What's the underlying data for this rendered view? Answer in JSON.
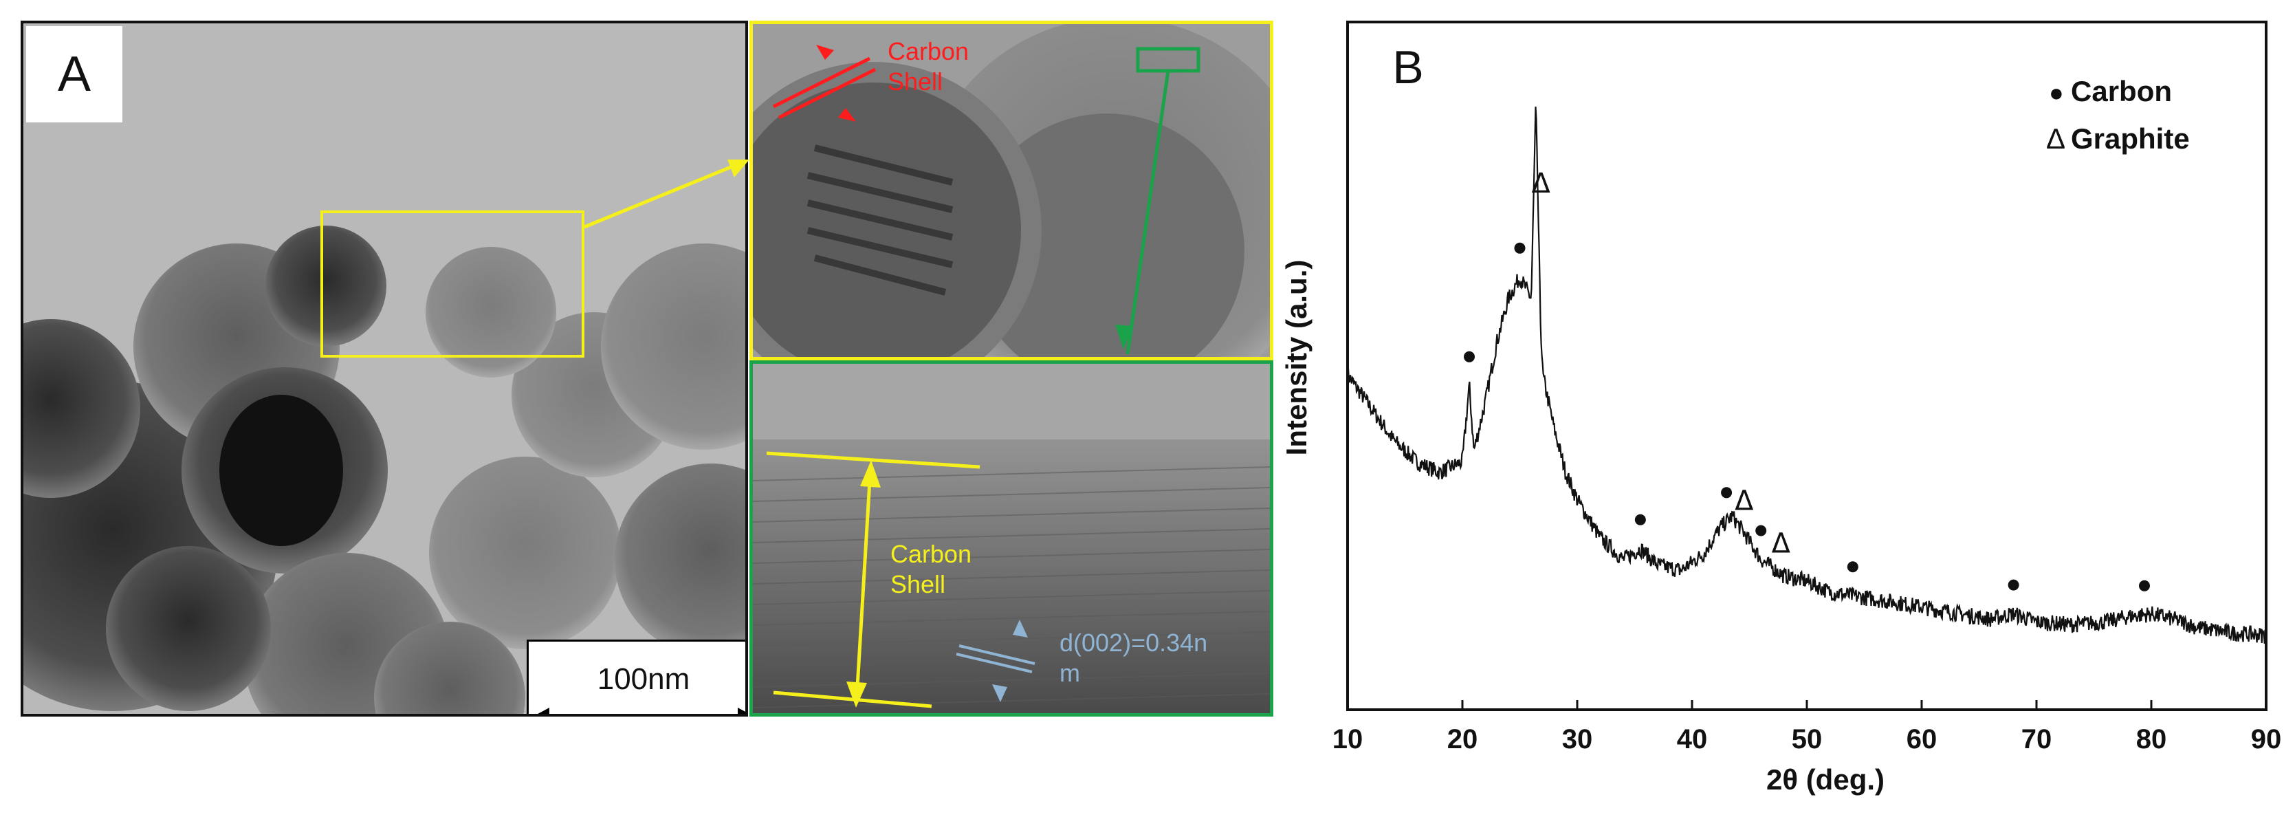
{
  "panel_a": {
    "letter": "A",
    "inset_top": {
      "label_line1": "Carbon",
      "label_line2": "Shell"
    },
    "inset_bottom": {
      "label_line1": "Carbon",
      "label_line2": "Shell",
      "d_spacing_line1": "d(002)=0.34n",
      "d_spacing_line2": "m"
    },
    "scale_bar": {
      "label": "100nm"
    },
    "colors": {
      "highlight_box": "#f5ef1c",
      "carbon_label_top": "#ff1c1c",
      "carbon_label_bottom": "#f5ef1c",
      "d_spacing": "#8fb4d4",
      "zoom_arrow_green": "#1aa34a"
    }
  },
  "panel_b": {
    "letter": "B",
    "legend": [
      {
        "symbol": "●",
        "label": "Carbon"
      },
      {
        "symbol": "Δ",
        "label": "Graphite"
      }
    ],
    "peak_markers": {
      "carbon_symbol": "●",
      "graphite_symbol": "Δ"
    }
  },
  "chart_data": {
    "type": "line",
    "title": "",
    "xlabel": "2θ (deg.)",
    "ylabel": "Intensity (a.u.)",
    "xlim": [
      10,
      90
    ],
    "x_ticks": [
      10,
      20,
      30,
      40,
      50,
      60,
      70,
      80,
      90
    ],
    "y_ticks": [],
    "legend_position": "top-right",
    "series": [
      {
        "x": [
          10,
          12,
          14,
          16,
          18,
          20,
          20.6,
          21,
          22,
          23,
          24,
          25,
          25.5,
          26,
          26.4,
          26.6,
          26.8,
          27,
          28,
          29,
          30,
          32,
          34,
          35.5,
          37,
          39,
          41,
          42.5,
          43.5,
          44.5,
          46,
          48,
          50,
          52,
          55,
          58,
          62,
          66,
          68,
          70,
          73,
          76,
          78,
          80,
          82,
          84,
          87,
          90
        ],
        "y": [
          0.5,
          0.44,
          0.38,
          0.34,
          0.32,
          0.34,
          0.48,
          0.36,
          0.45,
          0.56,
          0.64,
          0.68,
          0.66,
          0.64,
          1.0,
          0.8,
          0.6,
          0.5,
          0.4,
          0.32,
          0.27,
          0.2,
          0.16,
          0.18,
          0.15,
          0.14,
          0.17,
          0.22,
          0.24,
          0.21,
          0.16,
          0.13,
          0.12,
          0.1,
          0.09,
          0.08,
          0.065,
          0.05,
          0.06,
          0.045,
          0.04,
          0.045,
          0.055,
          0.06,
          0.05,
          0.035,
          0.025,
          0.02
        ]
      }
    ],
    "markers": [
      {
        "x": 20.6,
        "type": "carbon"
      },
      {
        "x": 25.0,
        "type": "carbon"
      },
      {
        "x": 26.6,
        "type": "graphite"
      },
      {
        "x": 35.5,
        "type": "carbon"
      },
      {
        "x": 43.0,
        "type": "carbon"
      },
      {
        "x": 44.3,
        "type": "graphite"
      },
      {
        "x": 46.0,
        "type": "carbon"
      },
      {
        "x": 47.5,
        "type": "graphite"
      },
      {
        "x": 54.0,
        "type": "carbon"
      },
      {
        "x": 68.0,
        "type": "carbon"
      },
      {
        "x": 79.4,
        "type": "carbon"
      }
    ]
  }
}
